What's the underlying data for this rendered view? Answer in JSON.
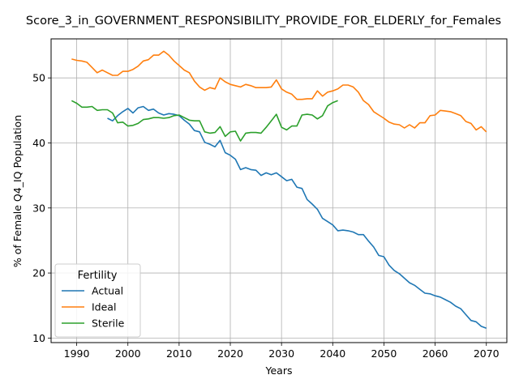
{
  "chart_data": {
    "type": "line",
    "title": "Score_3_in_GOVERNMENT_RESPONSIBILITY_PROVIDE_FOR_ELDERLY_for_Females",
    "xlabel": "Years",
    "ylabel": "% of Female Q4_IQ Population",
    "xlim": [
      1985,
      2074
    ],
    "ylim": [
      9.3,
      56.0
    ],
    "xticks": [
      1990,
      2000,
      2010,
      2020,
      2030,
      2040,
      2050,
      2060,
      2070
    ],
    "yticks": [
      10,
      20,
      30,
      40,
      50
    ],
    "grid": true,
    "legend": {
      "title": "Fertility",
      "position": "lower-left"
    },
    "series": [
      {
        "name": "Actual",
        "color": "#1f77b4",
        "x": [
          1996,
          1997,
          1998,
          1999,
          2000,
          2001,
          2002,
          2003,
          2004,
          2005,
          2006,
          2007,
          2008,
          2009,
          2010,
          2011,
          2012,
          2013,
          2014,
          2015,
          2016,
          2017,
          2018,
          2019,
          2020,
          2021,
          2022,
          2023,
          2024,
          2025,
          2026,
          2027,
          2028,
          2029,
          2030,
          2031,
          2032,
          2033,
          2034,
          2035,
          2036,
          2037,
          2038,
          2039,
          2040,
          2041,
          2042,
          2043,
          2044,
          2045,
          2046,
          2047,
          2048,
          2049,
          2050,
          2051,
          2052,
          2053,
          2054,
          2055,
          2056,
          2057,
          2058,
          2059,
          2060,
          2061,
          2062,
          2063,
          2064,
          2065,
          2066,
          2067,
          2068,
          2069,
          2070
        ],
        "values": [
          43.8,
          43.4,
          44.2,
          44.8,
          45.3,
          44.6,
          45.4,
          45.6,
          45.0,
          45.2,
          44.6,
          44.3,
          44.5,
          44.4,
          44.2,
          43.5,
          42.9,
          41.9,
          41.7,
          40.1,
          39.8,
          39.4,
          40.4,
          38.5,
          38.1,
          37.5,
          35.9,
          36.2,
          35.9,
          35.8,
          35.0,
          35.4,
          35.1,
          35.4,
          34.8,
          34.2,
          34.4,
          33.2,
          33.0,
          31.3,
          30.6,
          29.8,
          28.4,
          27.9,
          27.4,
          26.5,
          26.6,
          26.5,
          26.3,
          25.9,
          25.9,
          24.9,
          24.0,
          22.7,
          22.5,
          21.2,
          20.4,
          19.9,
          19.2,
          18.5,
          18.1,
          17.5,
          16.9,
          16.8,
          16.5,
          16.3,
          15.9,
          15.5,
          14.9,
          14.5,
          13.6,
          12.7,
          12.5,
          11.8,
          11.5
        ]
      },
      {
        "name": "Ideal",
        "color": "#ff7f0e",
        "x": [
          1989,
          1990,
          1991,
          1992,
          1993,
          1994,
          1995,
          1996,
          1997,
          1998,
          1999,
          2000,
          2001,
          2002,
          2003,
          2004,
          2005,
          2006,
          2007,
          2008,
          2009,
          2010,
          2011,
          2012,
          2013,
          2014,
          2015,
          2016,
          2017,
          2018,
          2019,
          2020,
          2021,
          2022,
          2023,
          2024,
          2025,
          2026,
          2027,
          2028,
          2029,
          2030,
          2031,
          2032,
          2033,
          2034,
          2035,
          2036,
          2037,
          2038,
          2039,
          2040,
          2041,
          2042,
          2043,
          2044,
          2045,
          2046,
          2047,
          2048,
          2049,
          2050,
          2051,
          2052,
          2053,
          2054,
          2055,
          2056,
          2057,
          2058,
          2059,
          2060,
          2061,
          2062,
          2063,
          2064,
          2065,
          2066,
          2067,
          2068,
          2069,
          2070
        ],
        "values": [
          52.9,
          52.7,
          52.6,
          52.4,
          51.6,
          50.8,
          51.2,
          50.8,
          50.4,
          50.4,
          51.0,
          51.0,
          51.3,
          51.8,
          52.6,
          52.8,
          53.5,
          53.5,
          54.1,
          53.5,
          52.6,
          51.9,
          51.2,
          50.8,
          49.5,
          48.6,
          48.1,
          48.5,
          48.3,
          50.0,
          49.4,
          49.0,
          48.8,
          48.6,
          49.0,
          48.8,
          48.5,
          48.5,
          48.5,
          48.6,
          49.7,
          48.3,
          47.8,
          47.5,
          46.7,
          46.7,
          46.8,
          46.8,
          48.0,
          47.2,
          47.8,
          48.0,
          48.3,
          48.9,
          48.9,
          48.6,
          47.8,
          46.5,
          45.9,
          44.8,
          44.3,
          43.8,
          43.2,
          42.9,
          42.8,
          42.3,
          42.8,
          42.3,
          43.1,
          43.1,
          44.2,
          44.3,
          45.0,
          44.9,
          44.8,
          44.5,
          44.2,
          43.3,
          43.0,
          42.0,
          42.5,
          41.7
        ]
      },
      {
        "name": "Sterile",
        "color": "#2ca02c",
        "x": [
          1989,
          1990,
          1991,
          1992,
          1993,
          1994,
          1995,
          1996,
          1997,
          1998,
          1999,
          2000,
          2001,
          2002,
          2003,
          2004,
          2005,
          2006,
          2007,
          2008,
          2009,
          2010,
          2011,
          2012,
          2013,
          2014,
          2015,
          2016,
          2017,
          2018,
          2019,
          2020,
          2021,
          2022,
          2023,
          2024,
          2025,
          2026,
          2027,
          2028,
          2029,
          2030,
          2031,
          2032,
          2033,
          2034,
          2035,
          2036,
          2037,
          2038,
          2039,
          2040,
          2041
        ],
        "values": [
          46.5,
          46.1,
          45.5,
          45.5,
          45.6,
          45.0,
          45.1,
          45.1,
          44.6,
          43.1,
          43.2,
          42.6,
          42.7,
          43.0,
          43.6,
          43.7,
          43.9,
          43.9,
          43.8,
          43.9,
          44.2,
          44.3,
          43.9,
          43.5,
          43.4,
          43.4,
          41.7,
          41.5,
          41.6,
          42.5,
          41.0,
          41.7,
          41.8,
          40.3,
          41.5,
          41.6,
          41.6,
          41.5,
          42.4,
          43.4,
          44.4,
          42.4,
          42.0,
          42.6,
          42.6,
          44.3,
          44.4,
          44.3,
          43.7,
          44.2,
          45.7,
          46.2,
          46.5
        ]
      }
    ]
  }
}
